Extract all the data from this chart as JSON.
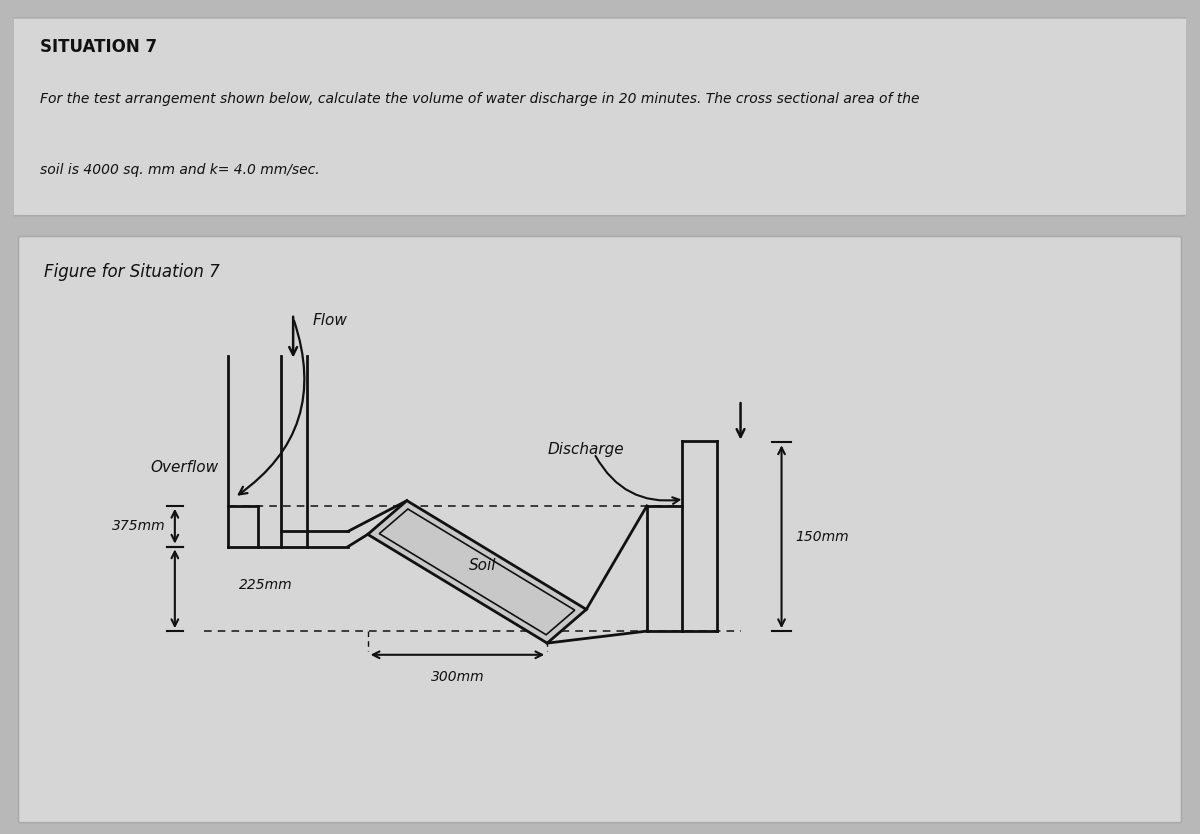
{
  "title": "SITUATION 7",
  "desc1": "For the test arrangement shown below, calculate the volume of water discharge in 20 minutes. The cross sectional area of the",
  "desc2": "soil is 4000 sq. mm and k= 4.0 mm/sec.",
  "fig_title": "Figure for Situation 7",
  "bg_outer": "#b8b8b8",
  "bg_panel": "#d8d8d8",
  "text_color": "#111111",
  "black": "#111111",
  "dim_375": "375mm",
  "dim_225": "225mm",
  "dim_150": "150mm",
  "dim_300": "300mm",
  "lbl_flow": "Flow",
  "lbl_overflow": "Overflow",
  "lbl_discharge": "Discharge",
  "lbl_soil": "Soil"
}
